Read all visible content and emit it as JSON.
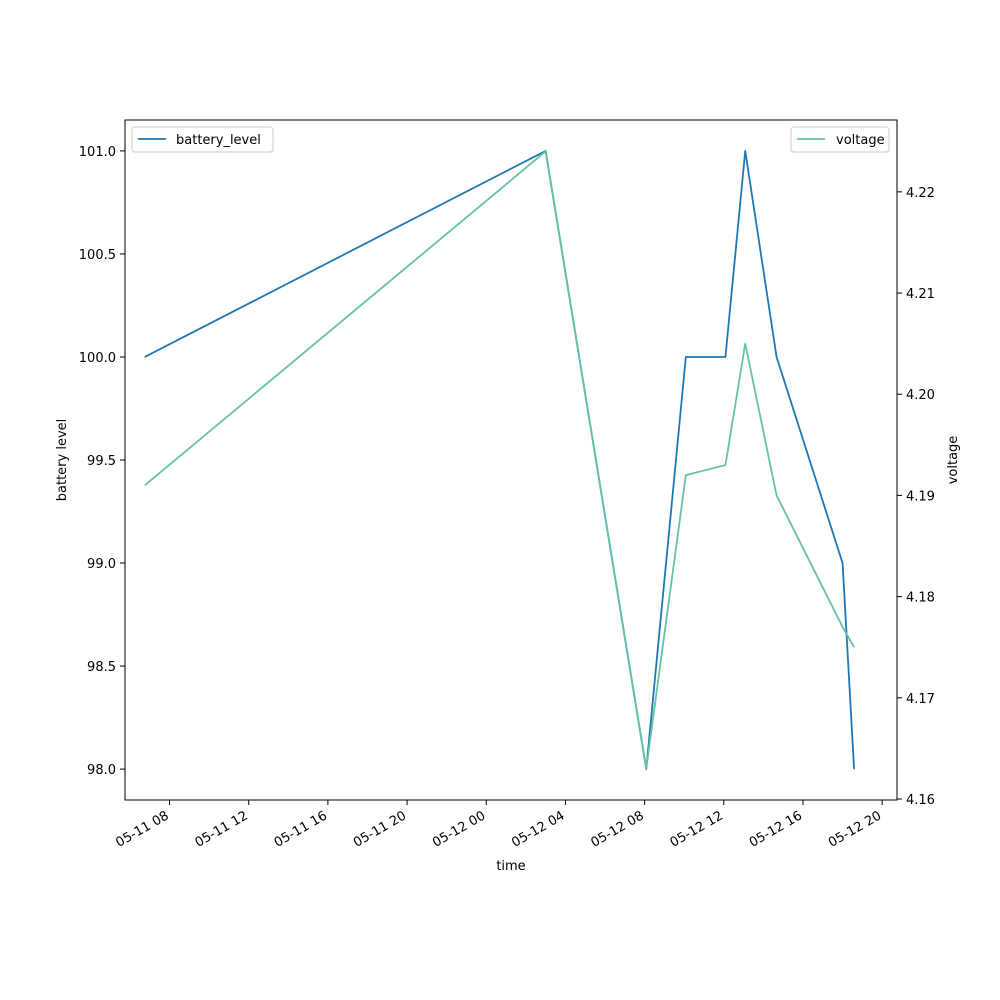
{
  "chart_data": {
    "type": "line",
    "xlabel": "time",
    "y_left_label": "battery level",
    "y_right_label": "voltage",
    "x_ticks": [
      "05-11 08",
      "05-11 12",
      "05-11 16",
      "05-11 20",
      "05-12 00",
      "05-12 04",
      "05-12 08",
      "05-12 12",
      "05-12 16",
      "05-12 20"
    ],
    "y_left_ticks": [
      "98.0",
      "98.5",
      "99.0",
      "99.5",
      "100.0",
      "100.5",
      "101.0"
    ],
    "y_right_ticks": [
      "4.16",
      "4.17",
      "4.18",
      "4.19",
      "4.20",
      "4.21",
      "4.22"
    ],
    "y_left_lim": [
      97.85,
      101.15
    ],
    "y_right_lim": [
      4.1599,
      4.2271
    ],
    "x_lim": [
      "2024-05-11 05:45",
      "2024-05-12 20:45"
    ],
    "series": [
      {
        "name": "battery_level",
        "axis": "left",
        "color": "#1f77b4",
        "x": [
          "2024-05-11 06:45",
          "2024-05-12 03:00",
          "2024-05-12 08:05",
          "2024-05-12 10:05",
          "2024-05-12 12:05",
          "2024-05-12 13:05",
          "2024-05-12 14:40",
          "2024-05-12 18:00",
          "2024-05-12 18:35"
        ],
        "y": [
          100.0,
          101.0,
          98.0,
          100.0,
          100.0,
          101.0,
          100.0,
          99.0,
          98.0
        ]
      },
      {
        "name": "voltage",
        "axis": "right",
        "color": "#66c2a5",
        "x": [
          "2024-05-11 06:45",
          "2024-05-12 03:00",
          "2024-05-12 08:05",
          "2024-05-12 10:05",
          "2024-05-12 12:05",
          "2024-05-12 13:05",
          "2024-05-12 14:40",
          "2024-05-12 18:00",
          "2024-05-12 18:35"
        ],
        "y": [
          4.191,
          4.224,
          4.163,
          4.192,
          4.193,
          4.205,
          4.19,
          4.177,
          4.175
        ]
      }
    ],
    "legend_left": {
      "placement": "upper-left",
      "label": "battery_level"
    },
    "legend_right": {
      "placement": "upper-right",
      "label": "voltage"
    },
    "grid": false
  }
}
